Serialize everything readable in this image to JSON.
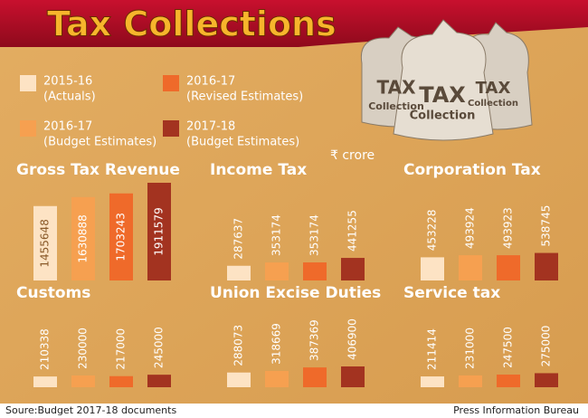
{
  "title": "Tax Collections",
  "bag_text": {
    "line1": "TAX",
    "line2": "Collection"
  },
  "legend": [
    {
      "name": "2015-16",
      "note": "(Actuals)",
      "color": "#fde3c4"
    },
    {
      "name": "2016-17",
      "note": "(Budget Estimates)",
      "color": "#f6a050"
    },
    {
      "name": "2016-17",
      "note": "(Revised Estimates)",
      "color": "#ef6a2a"
    },
    {
      "name": "2017-18",
      "note": "(Budget Estimates)",
      "color": "#a33320"
    }
  ],
  "unit": "₹ crore",
  "chart_data": [
    {
      "type": "bar",
      "title": "Gross Tax Revenue",
      "values": [
        1455648,
        1630888,
        1703243,
        1911579
      ]
    },
    {
      "type": "bar",
      "title": "Income Tax",
      "values": [
        287637,
        353174,
        353174,
        441255
      ]
    },
    {
      "type": "bar",
      "title": "Corporation Tax",
      "values": [
        453228,
        493924,
        493923,
        538745
      ]
    },
    {
      "type": "bar",
      "title": "Customs",
      "values": [
        210338,
        230000,
        217000,
        245000
      ]
    },
    {
      "type": "bar",
      "title": "Union Excise Duties",
      "values": [
        288073,
        318669,
        387369,
        406900
      ]
    },
    {
      "type": "bar",
      "title": "Service tax",
      "values": [
        211414,
        231000,
        247500,
        275000
      ]
    }
  ],
  "source": "Soure:Budget 2017-18 documents",
  "credit": "Press Information Bureau"
}
